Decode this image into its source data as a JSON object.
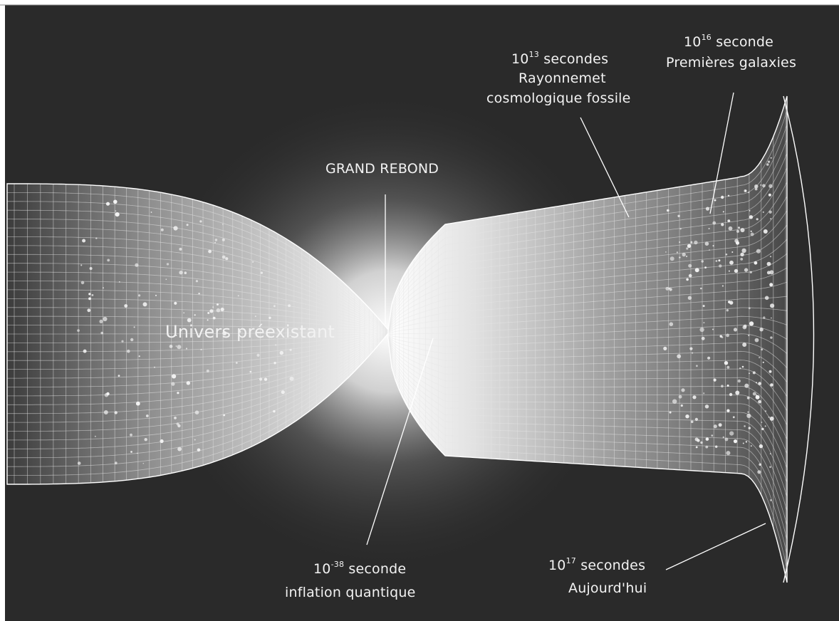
{
  "diagram": {
    "background_color": "#2a2a2a",
    "frame_color": "#ffffff",
    "grid_color": "#e6e6e6",
    "labels": {
      "center_top": "GRAND REBOND",
      "left": "Univers préexistant",
      "bottom_center": {
        "base": "10",
        "exp": "-38",
        "line1_rest": " seconde",
        "line2": "inflation quantique"
      },
      "top_mid": {
        "base": "10",
        "exp": "13",
        "line1_rest": " secondes",
        "line2": "Rayonnemet",
        "line3": "cosmologique fossile"
      },
      "top_right": {
        "base": "10",
        "exp": "16",
        "line1_rest": " seconde",
        "line2": "Premières galaxies"
      },
      "bottom_right": {
        "base": "10",
        "exp": "17",
        "line1_rest": " secondes",
        "line2": "Aujourd'hui"
      }
    }
  }
}
